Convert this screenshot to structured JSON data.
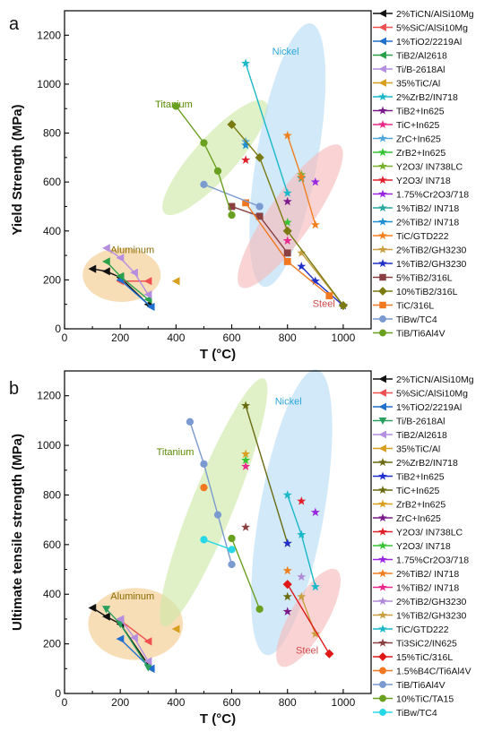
{
  "chart_data": [
    {
      "type": "scatter",
      "panel_label": "a",
      "xlabel": "T (°C)",
      "ylabel": "Yield Strength (MPa)",
      "xlim": [
        0,
        1100
      ],
      "ylim": [
        0,
        1300
      ],
      "xticks": [
        0,
        200,
        400,
        600,
        800,
        1000
      ],
      "yticks": [
        0,
        200,
        400,
        600,
        800,
        1000,
        1200
      ],
      "legend_position": "right",
      "regions": [
        {
          "name": "Aluminum",
          "color": "#f2c98a",
          "cx": 205,
          "cy": 220,
          "rx": 140,
          "ry": 110,
          "angle": 0,
          "label_x": 165,
          "label_y": 310,
          "label_color": "#8a6a00"
        },
        {
          "name": "Titanium",
          "color": "#cde9a7",
          "cx": 540,
          "cy": 700,
          "rx": 270,
          "ry": 85,
          "angle": -48,
          "label_x": 325,
          "label_y": 905,
          "label_color": "#5a8a00"
        },
        {
          "name": "Nickel",
          "color": "#b4dcf5",
          "cx": 800,
          "cy": 710,
          "rx": 480,
          "ry": 125,
          "angle": -80,
          "label_x": 745,
          "label_y": 1120,
          "label_color": "#2aa6d8"
        },
        {
          "name": "Steel",
          "color": "#f7b9b9",
          "cx": 810,
          "cy": 460,
          "rx": 310,
          "ry": 90,
          "angle": -55,
          "label_x": 890,
          "label_y": 90,
          "label_color": "#d24a4a"
        }
      ],
      "series": [
        {
          "name": "2%TiCN/AlSi10Mg",
          "color": "#111111",
          "marker": "tri-left",
          "line": true,
          "points": [
            [
              100,
              245
            ],
            [
              150,
              235
            ],
            [
              200,
              210
            ],
            [
              300,
              100
            ]
          ]
        },
        {
          "name": "5%SiC/AlSi10Mg",
          "color": "#f05050",
          "marker": "tri-left",
          "line": true,
          "points": [
            [
              200,
              195
            ],
            [
              300,
              195
            ]
          ]
        },
        {
          "name": "1%TiO2/2219Al",
          "color": "#1f6fd0",
          "marker": "tri-left",
          "line": true,
          "points": [
            [
              200,
              200
            ],
            [
              310,
              90
            ]
          ]
        },
        {
          "name": "TiB2/Al2618",
          "color": "#2aa04a",
          "marker": "tri-left",
          "line": true,
          "points": [
            [
              150,
              275
            ],
            [
              200,
              215
            ],
            [
              300,
              120
            ]
          ]
        },
        {
          "name": "Ti/B-2618Al",
          "color": "#b58ee0",
          "marker": "tri-left",
          "line": true,
          "points": [
            [
              150,
              330
            ],
            [
              200,
              290
            ],
            [
              250,
              230
            ],
            [
              300,
              140
            ]
          ]
        },
        {
          "name": "35%TiC/Al",
          "color": "#d9a020",
          "marker": "tri-left",
          "line": false,
          "points": [
            [
              400,
              195
            ]
          ]
        },
        {
          "name": "2%ZrB2/IN718",
          "color": "#1ab8c8",
          "marker": "star",
          "line": true,
          "points": [
            [
              650,
              1085
            ],
            [
              800,
              555
            ]
          ]
        },
        {
          "name": "TiB2+In625",
          "color": "#7a1a8a",
          "marker": "star",
          "line": false,
          "points": [
            [
              800,
              520
            ]
          ]
        },
        {
          "name": "TiC+In625",
          "color": "#e8288a",
          "marker": "star",
          "line": false,
          "points": [
            [
              800,
              360
            ]
          ]
        },
        {
          "name": "ZrC+In625",
          "color": "#50a8d8",
          "marker": "star",
          "line": false,
          "points": [
            [
              650,
              765
            ]
          ]
        },
        {
          "name": "ZrB2+In625",
          "color": "#36c436",
          "marker": "star",
          "line": false,
          "points": [
            [
              800,
              435
            ]
          ]
        },
        {
          "name": "Y2O3/ IN738LC",
          "color": "#78b030",
          "marker": "star",
          "line": false,
          "points": [
            [
              850,
              630
            ]
          ]
        },
        {
          "name": "Y2O3/ IN718",
          "color": "#e0202a",
          "marker": "star",
          "line": false,
          "points": [
            [
              650,
              690
            ]
          ]
        },
        {
          "name": "1.75%Cr2O3/718",
          "color": "#9a28e0",
          "marker": "star",
          "line": false,
          "points": [
            [
              900,
              600
            ]
          ]
        },
        {
          "name": "1%TiB2/ IN718",
          "color": "#28a8a0",
          "marker": "star",
          "line": false,
          "points": [
            [
              850,
              615
            ]
          ]
        },
        {
          "name": "2%TiB2/ IN718",
          "color": "#1f8fd0",
          "marker": "star",
          "line": false,
          "points": [
            [
              650,
              750
            ]
          ]
        },
        {
          "name": "TiC/GTD222",
          "color": "#f07f20",
          "marker": "star",
          "line": true,
          "points": [
            [
              800,
              790
            ],
            [
              850,
              620
            ],
            [
              900,
              425
            ]
          ]
        },
        {
          "name": "2%TiB2/GH3230",
          "color": "#c8a040",
          "marker": "star",
          "line": true,
          "points": [
            [
              850,
              310
            ],
            [
              1000,
              95
            ]
          ]
        },
        {
          "name": "1%TiB2/GH3230",
          "color": "#1f2fc8",
          "marker": "star",
          "line": true,
          "points": [
            [
              850,
              255
            ],
            [
              900,
              195
            ],
            [
              1000,
              95
            ]
          ]
        },
        {
          "name": "5%TiB2/316L",
          "color": "#8a4040",
          "marker": "square",
          "line": true,
          "points": [
            [
              600,
              500
            ],
            [
              700,
              460
            ],
            [
              800,
              310
            ]
          ]
        },
        {
          "name": "10%TiB2/316L",
          "color": "#7a7a10",
          "marker": "diamond",
          "line": true,
          "points": [
            [
              600,
              835
            ],
            [
              700,
              700
            ],
            [
              800,
              400
            ],
            [
              1000,
              95
            ]
          ]
        },
        {
          "name": "TiC/316L",
          "color": "#f07820",
          "marker": "square",
          "line": true,
          "points": [
            [
              650,
              515
            ],
            [
              800,
              275
            ],
            [
              950,
              135
            ]
          ]
        },
        {
          "name": "TiBw/TC4",
          "color": "#7a9ad0",
          "marker": "circle",
          "line": true,
          "points": [
            [
              500,
              590
            ],
            [
              700,
              500
            ]
          ]
        },
        {
          "name": "TiB/Ti6Al4V",
          "color": "#6aa020",
          "marker": "circle",
          "line": true,
          "points": [
            [
              400,
              910
            ],
            [
              500,
              760
            ],
            [
              550,
              645
            ],
            [
              600,
              465
            ]
          ]
        }
      ]
    },
    {
      "type": "scatter",
      "panel_label": "b",
      "xlabel": "T (°C)",
      "ylabel": "Ultimate tensile strength (MPa)",
      "xlim": [
        0,
        1100
      ],
      "ylim": [
        0,
        1300
      ],
      "xticks": [
        0,
        200,
        400,
        600,
        800,
        1000
      ],
      "yticks": [
        0,
        200,
        400,
        600,
        800,
        1000,
        1200
      ],
      "legend_position": "right",
      "regions": [
        {
          "name": "Aluminum",
          "color": "#f2c98a",
          "cx": 255,
          "cy": 280,
          "rx": 170,
          "ry": 145,
          "angle": 0,
          "label_x": 165,
          "label_y": 380,
          "label_color": "#8a6a00"
        },
        {
          "name": "Titanium",
          "color": "#cde9a7",
          "cx": 535,
          "cy": 770,
          "rx": 480,
          "ry": 85,
          "angle": -68,
          "label_x": 330,
          "label_y": 960,
          "label_color": "#5a8a00"
        },
        {
          "name": "Nickel",
          "color": "#b4dcf5",
          "cx": 815,
          "cy": 730,
          "rx": 520,
          "ry": 130,
          "angle": -80,
          "label_x": 755,
          "label_y": 1165,
          "label_color": "#2aa6d8"
        },
        {
          "name": "Steel",
          "color": "#f7b9b9",
          "cx": 875,
          "cy": 305,
          "rx": 200,
          "ry": 75,
          "angle": -60,
          "label_x": 830,
          "label_y": 160,
          "label_color": "#d24a4a"
        }
      ],
      "series": [
        {
          "name": "2%TiCN/AlSi10Mg",
          "color": "#111111",
          "marker": "tri-left",
          "line": true,
          "points": [
            [
              100,
              345
            ],
            [
              150,
              310
            ],
            [
              200,
              280
            ],
            [
              310,
              100
            ]
          ]
        },
        {
          "name": "5%SiC/AlSi10Mg",
          "color": "#f05050",
          "marker": "tri-left",
          "line": true,
          "points": [
            [
              200,
              295
            ],
            [
              300,
              210
            ]
          ]
        },
        {
          "name": "1%TiO2/2219Al",
          "color": "#1f6fd0",
          "marker": "tri-left",
          "line": true,
          "points": [
            [
              200,
              220
            ],
            [
              310,
              100
            ]
          ]
        },
        {
          "name": "Ti/B-2618Al",
          "color": "#2aa060",
          "marker": "tri-down",
          "line": true,
          "points": [
            [
              150,
              340
            ],
            [
              200,
              280
            ],
            [
              300,
              105
            ]
          ]
        },
        {
          "name": "TiB2/Al2618",
          "color": "#b58ee0",
          "marker": "tri-left",
          "line": true,
          "points": [
            [
              200,
              300
            ],
            [
              250,
              225
            ],
            [
              300,
              130
            ]
          ]
        },
        {
          "name": "35%TiC/Al",
          "color": "#d9a020",
          "marker": "tri-left",
          "line": false,
          "points": [
            [
              400,
              260
            ]
          ]
        },
        {
          "name": "2%ZrB2/IN718",
          "color": "#6a6a10",
          "marker": "star",
          "line": true,
          "points": [
            [
              650,
              1160
            ],
            [
              800,
              605
            ]
          ]
        },
        {
          "name": "TiB2+In625",
          "color": "#1f2fd0",
          "marker": "star",
          "line": false,
          "points": [
            [
              800,
              605
            ]
          ]
        },
        {
          "name": "TiC+In625",
          "color": "#6a6a10",
          "marker": "star",
          "line": false,
          "points": [
            [
              800,
              390
            ]
          ]
        },
        {
          "name": "ZrB2+In625",
          "color": "#d9a020",
          "marker": "star",
          "line": false,
          "points": [
            [
              650,
              965
            ]
          ]
        },
        {
          "name": "ZrC+In625",
          "color": "#7a1a8a",
          "marker": "star",
          "line": false,
          "points": [
            [
              800,
              330
            ]
          ]
        },
        {
          "name": "Y2O3/ IN738LC",
          "color": "#e0202a",
          "marker": "star",
          "line": false,
          "points": [
            [
              850,
              775
            ]
          ]
        },
        {
          "name": "Y2O3/ IN718",
          "color": "#36c436",
          "marker": "star",
          "line": false,
          "points": [
            [
              650,
              940
            ]
          ]
        },
        {
          "name": "1.75%Cr2O3/718",
          "color": "#9a28e0",
          "marker": "star",
          "line": false,
          "points": [
            [
              900,
              730
            ]
          ]
        },
        {
          "name": "2%TiB2/ IN718",
          "color": "#f07f20",
          "marker": "star",
          "line": false,
          "points": [
            [
              800,
              495
            ]
          ]
        },
        {
          "name": "1%TiB2/ IN718",
          "color": "#e8288a",
          "marker": "star",
          "line": false,
          "points": [
            [
              650,
              915
            ]
          ]
        },
        {
          "name": "2%TiB2/GH3230",
          "color": "#b08ad8",
          "marker": "star",
          "line": false,
          "points": [
            [
              850,
              470
            ]
          ]
        },
        {
          "name": "1%TiB2/GH3230",
          "color": "#c8a040",
          "marker": "star",
          "line": true,
          "points": [
            [
              850,
              390
            ],
            [
              900,
              240
            ]
          ]
        },
        {
          "name": "TiC/GTD222",
          "color": "#1ab8c8",
          "marker": "star",
          "line": true,
          "points": [
            [
              800,
              800
            ],
            [
              850,
              640
            ],
            [
              900,
              430
            ]
          ]
        },
        {
          "name": "Ti3SiC2/IN625",
          "color": "#8a4040",
          "marker": "star",
          "line": false,
          "points": [
            [
              650,
              670
            ]
          ]
        },
        {
          "name": "15%TiC/316L",
          "color": "#e01818",
          "marker": "diamond",
          "line": true,
          "points": [
            [
              800,
              440
            ],
            [
              950,
              160
            ]
          ]
        },
        {
          "name": "1.5%B4C/Ti6Al4V",
          "color": "#f07820",
          "marker": "circle",
          "line": false,
          "points": [
            [
              500,
              830
            ]
          ]
        },
        {
          "name": "TiB/Ti6Al4V",
          "color": "#7a9ad0",
          "marker": "circle",
          "line": true,
          "points": [
            [
              450,
              1095
            ],
            [
              500,
              925
            ],
            [
              550,
              720
            ],
            [
              600,
              520
            ]
          ]
        },
        {
          "name": "10%TiC/TA15",
          "color": "#6aa020",
          "marker": "circle",
          "line": true,
          "points": [
            [
              600,
              625
            ],
            [
              700,
              340
            ]
          ]
        },
        {
          "name": "TiBw/TC4",
          "color": "#28d8e8",
          "marker": "circle",
          "line": true,
          "points": [
            [
              500,
              620
            ],
            [
              600,
              580
            ]
          ]
        }
      ]
    }
  ]
}
